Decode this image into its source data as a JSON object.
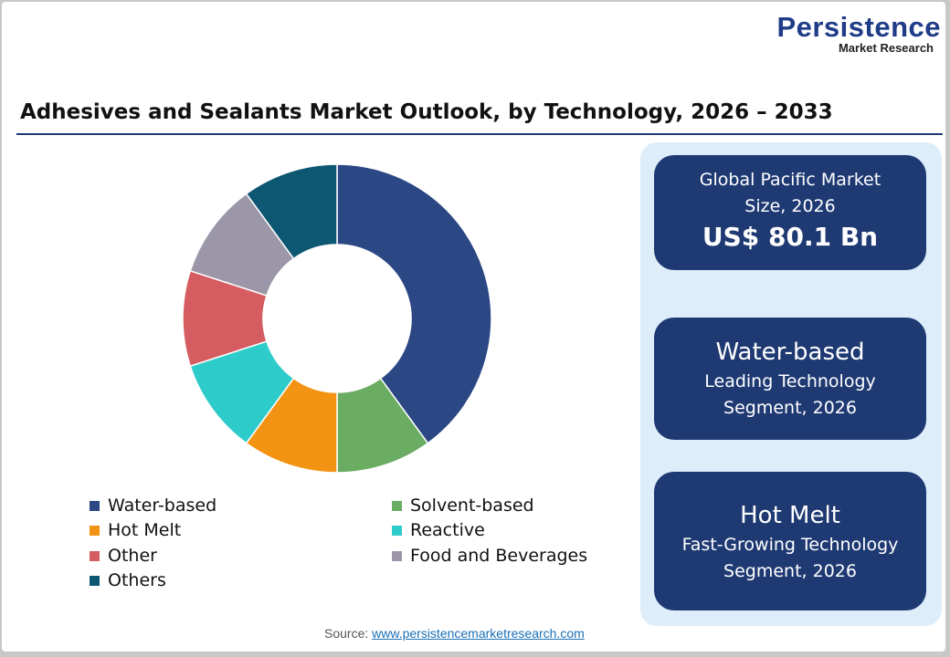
{
  "logo": {
    "line1": "Persistence",
    "line2": "Market Research"
  },
  "chart_data": {
    "type": "donut",
    "title": "Adhesives and Sealants Market Outlook, by Technology, 2026 – 2033",
    "categories": [
      "Water-based",
      "Solvent-based",
      "Hot Melt",
      "Reactive",
      "Other",
      "Food and Beverages",
      "Others"
    ],
    "values": [
      40,
      10,
      10,
      10,
      10,
      10,
      10
    ],
    "colors": [
      "#2b4784",
      "#6aac62",
      "#f39313",
      "#2ecbcb",
      "#d55d62",
      "#9b97a8",
      "#0d5773"
    ],
    "legend_position": "bottom"
  },
  "cards": [
    {
      "label1": "Global Pacific Market",
      "label2": "Size, 2026",
      "value": "US$ 80.1 Bn"
    },
    {
      "heading": "Water-based",
      "label1": "Leading Technology",
      "label2": "Segment, 2026"
    },
    {
      "heading": "Hot Melt",
      "label1": "Fast-Growing Technology",
      "label2": "Segment, 2026"
    }
  ],
  "source": {
    "label": "Source:",
    "link": "www.persistencemarketresearch.com"
  }
}
